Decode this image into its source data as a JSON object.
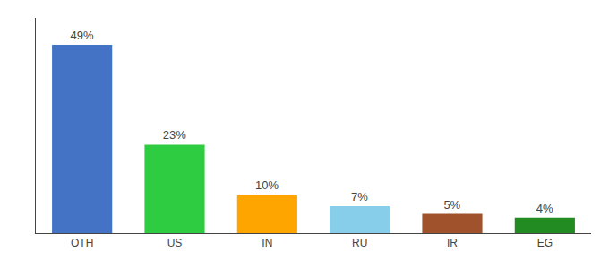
{
  "chart_data": {
    "type": "bar",
    "categories": [
      "OTH",
      "US",
      "IN",
      "RU",
      "IR",
      "EG"
    ],
    "values": [
      49,
      23,
      10,
      7,
      5,
      4
    ],
    "value_labels": [
      "49%",
      "23%",
      "10%",
      "7%",
      "5%",
      "4%"
    ],
    "colors": [
      "#4472C4",
      "#2ECC40",
      "#FFA500",
      "#87CEEB",
      "#A0522D",
      "#228B22"
    ],
    "ylim": [
      0,
      56
    ],
    "yticks": [],
    "grid": false,
    "data_labels": true,
    "tick_labels": "x"
  }
}
